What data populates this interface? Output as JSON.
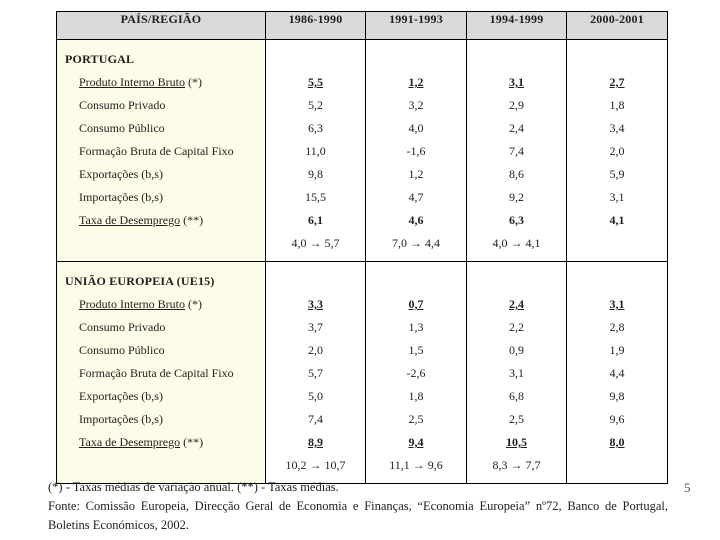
{
  "page": {
    "number": "5"
  },
  "colors": {
    "header_bg": "#D9D9D9",
    "label_col_bg": "#FDFCE8",
    "border": "#000000",
    "page_number": "#555555"
  },
  "table": {
    "header": {
      "region": "PAÍS/REGIÃO",
      "periods": [
        "1986-1990",
        "1991-1993",
        "1994-1999",
        "2000-2001"
      ]
    },
    "sections": [
      {
        "id": "portugal",
        "title": "PORTUGAL",
        "rows": [
          {
            "label": "Produto Interno Bruto",
            "suffix": "(*)",
            "label_underlined": true,
            "values": [
              "5,5",
              "1,2",
              "3,1",
              "2,7"
            ],
            "value_style": "bold-underline"
          },
          {
            "label": "Consumo Privado",
            "suffix": "",
            "label_underlined": false,
            "values": [
              "5,2",
              "3,2",
              "2,9",
              "1,8"
            ],
            "value_style": "normal"
          },
          {
            "label": "Consumo Público",
            "suffix": "",
            "label_underlined": false,
            "values": [
              "6,3",
              "4,0",
              "2,4",
              "3,4"
            ],
            "value_style": "normal"
          },
          {
            "label": "Formação Bruta de Capital Fixo",
            "suffix": "",
            "label_underlined": false,
            "values": [
              "11,0",
              "-1,6",
              "7,4",
              "2,0"
            ],
            "value_style": "normal"
          },
          {
            "label": "Exportações (b,s)",
            "suffix": "",
            "label_underlined": false,
            "values": [
              "9,8",
              "1,2",
              "8,6",
              "5,9"
            ],
            "value_style": "normal"
          },
          {
            "label": "Importações (b,s)",
            "suffix": "",
            "label_underlined": false,
            "values": [
              "15,5",
              "4,7",
              "9,2",
              "3,1"
            ],
            "value_style": "normal"
          },
          {
            "label": "Taxa de Desemprego",
            "suffix": "(**)",
            "label_underlined": true,
            "values": [
              "6,1",
              "4,6",
              "6,3",
              "4,1"
            ],
            "value_style": "bold"
          }
        ],
        "range_row": [
          "",
          "4,0 → 5,7",
          "7,0 → 4,4",
          "4,0 → 4,1"
        ]
      },
      {
        "id": "ue15",
        "title": "UNIÃO EUROPEIA (UE15)",
        "rows": [
          {
            "label": "Produto Interno Bruto",
            "suffix": "(*)",
            "label_underlined": true,
            "values": [
              "3,3",
              "0,7",
              "2,4",
              "3,1"
            ],
            "value_style": "bold-underline"
          },
          {
            "label": "Consumo Privado",
            "suffix": "",
            "label_underlined": false,
            "values": [
              "3,7",
              "1,3",
              "2,2",
              "2,8"
            ],
            "value_style": "normal"
          },
          {
            "label": "Consumo Público",
            "suffix": "",
            "label_underlined": false,
            "values": [
              "2,0",
              "1,5",
              "0,9",
              "1,9"
            ],
            "value_style": "normal"
          },
          {
            "label": "Formação Bruta de Capital Fixo",
            "suffix": "",
            "label_underlined": false,
            "values": [
              "5,7",
              "-2,6",
              "3,1",
              "4,4"
            ],
            "value_style": "normal"
          },
          {
            "label": "Exportações (b,s)",
            "suffix": "",
            "label_underlined": false,
            "values": [
              "5,0",
              "1,8",
              "6,8",
              "9,8"
            ],
            "value_style": "normal"
          },
          {
            "label": "Importações (b,s)",
            "suffix": "",
            "label_underlined": false,
            "values": [
              "7,4",
              "2,5",
              "2,5",
              "9,6"
            ],
            "value_style": "normal"
          },
          {
            "label": "Taxa de Desemprego",
            "suffix": "(**)",
            "label_underlined": true,
            "values": [
              "8,9",
              "9,4",
              "10,5",
              "8,0"
            ],
            "value_style": "bold-underline"
          }
        ],
        "range_row": [
          "",
          "10,2 → 10,7",
          "11,1 → 9,6",
          "8,3 → 7,7"
        ]
      }
    ]
  },
  "footnotes": {
    "symbols_note": "(*) - Taxas médias de variação anual. (**) - Taxas médias.",
    "fonte_line1": "Fonte: Comissão Europeia, Direcção Geral de Economia e Finanças, “Economia Europeia” nº72, Banco de Portugal,",
    "fonte_line2": "Boletins Económicos, 2002."
  }
}
